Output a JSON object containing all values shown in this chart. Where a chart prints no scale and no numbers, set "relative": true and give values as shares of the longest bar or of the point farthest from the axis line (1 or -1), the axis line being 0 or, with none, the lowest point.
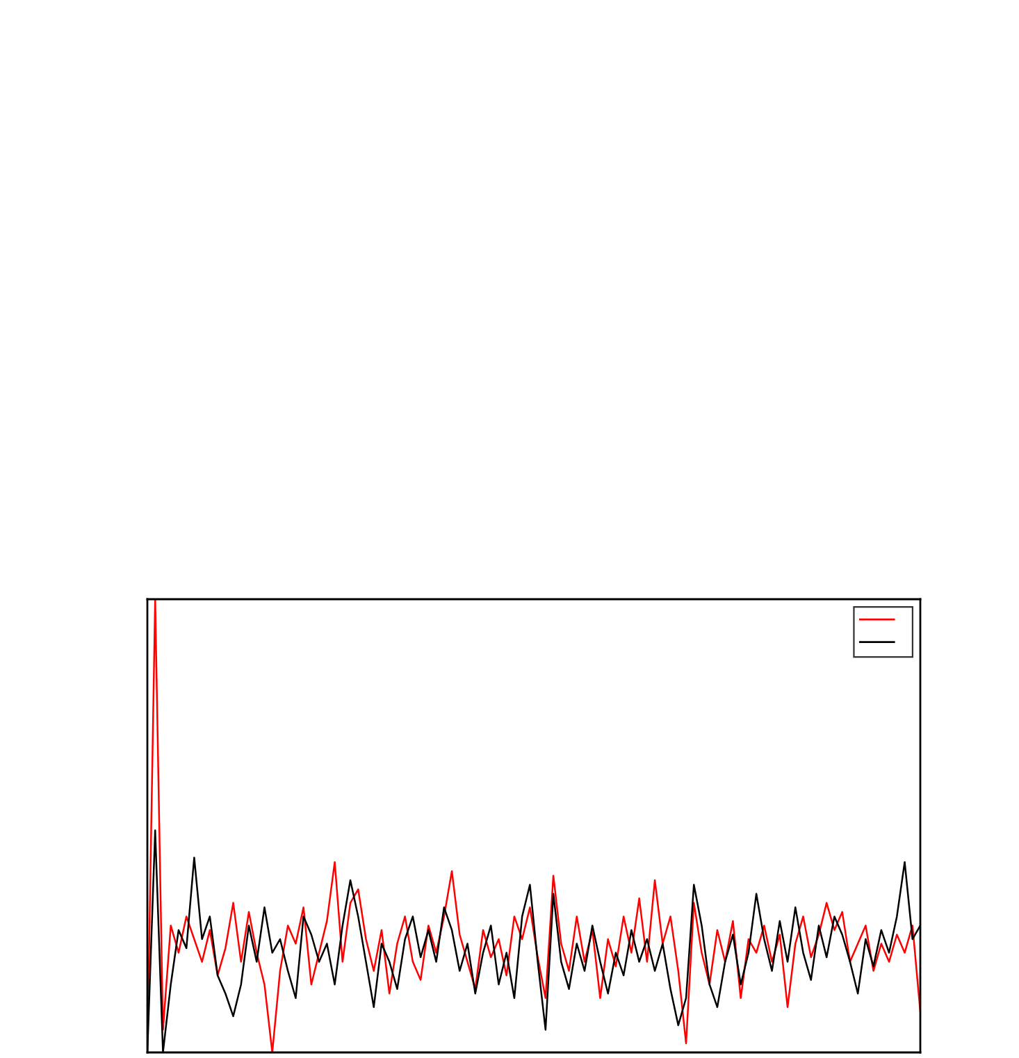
{
  "chart_data": {
    "type": "line",
    "relative": true,
    "categories": [
      null,
      null,
      null,
      null,
      null,
      null,
      null,
      null,
      null,
      null,
      null,
      null,
      null,
      null,
      null,
      null,
      null,
      null,
      null,
      null,
      null,
      null,
      null,
      null,
      null,
      null,
      null,
      null,
      null,
      null,
      null,
      null,
      null,
      null,
      null,
      null,
      null,
      null,
      null,
      null,
      null,
      null,
      null,
      null,
      null,
      null,
      null,
      null,
      null,
      null,
      null,
      null,
      null,
      null,
      null,
      null,
      null,
      null,
      null,
      null,
      null,
      null,
      null,
      null,
      null,
      null,
      null,
      null,
      null,
      null,
      null,
      null,
      null,
      null,
      null,
      null,
      null,
      null,
      null,
      null,
      null,
      null,
      null,
      null,
      null,
      null,
      null,
      null,
      null,
      null,
      null,
      null,
      null,
      null,
      null,
      null,
      null,
      null,
      null,
      null
    ],
    "series": [
      {
        "color": "#ff0000",
        "values": [
          0.0,
          1.0,
          0.05,
          0.28,
          0.22,
          0.3,
          0.25,
          0.2,
          0.27,
          0.17,
          0.23,
          0.33,
          0.2,
          0.31,
          0.22,
          0.15,
          0.0,
          0.18,
          0.28,
          0.24,
          0.32,
          0.15,
          0.22,
          0.29,
          0.42,
          0.2,
          0.33,
          0.36,
          0.25,
          0.18,
          0.27,
          0.13,
          0.24,
          0.3,
          0.2,
          0.16,
          0.28,
          0.22,
          0.3,
          0.4,
          0.26,
          0.2,
          0.14,
          0.27,
          0.21,
          0.25,
          0.17,
          0.3,
          0.25,
          0.32,
          0.21,
          0.12,
          0.39,
          0.24,
          0.18,
          0.3,
          0.2,
          0.27,
          0.12,
          0.25,
          0.19,
          0.3,
          0.22,
          0.34,
          0.2,
          0.38,
          0.24,
          0.3,
          0.18,
          0.02,
          0.33,
          0.22,
          0.15,
          0.27,
          0.2,
          0.29,
          0.12,
          0.25,
          0.22,
          0.28,
          0.2,
          0.26,
          0.1,
          0.24,
          0.3,
          0.21,
          0.26,
          0.33,
          0.27,
          0.31,
          0.2,
          0.24,
          0.28,
          0.18,
          0.24,
          0.2,
          0.26,
          0.22,
          0.28,
          0.09
        ]
      },
      {
        "color": "#000000",
        "values": [
          0.0,
          0.49,
          0.0,
          0.15,
          0.27,
          0.23,
          0.43,
          0.25,
          0.3,
          0.17,
          0.13,
          0.08,
          0.15,
          0.28,
          0.2,
          0.32,
          0.22,
          0.25,
          0.18,
          0.12,
          0.3,
          0.26,
          0.2,
          0.24,
          0.15,
          0.28,
          0.38,
          0.3,
          0.2,
          0.1,
          0.24,
          0.2,
          0.14,
          0.25,
          0.3,
          0.21,
          0.27,
          0.2,
          0.32,
          0.27,
          0.18,
          0.24,
          0.13,
          0.22,
          0.28,
          0.15,
          0.22,
          0.12,
          0.3,
          0.37,
          0.2,
          0.05,
          0.35,
          0.2,
          0.14,
          0.24,
          0.18,
          0.28,
          0.2,
          0.13,
          0.22,
          0.17,
          0.27,
          0.2,
          0.25,
          0.18,
          0.24,
          0.14,
          0.06,
          0.12,
          0.37,
          0.28,
          0.15,
          0.1,
          0.2,
          0.26,
          0.15,
          0.22,
          0.35,
          0.25,
          0.18,
          0.29,
          0.2,
          0.32,
          0.22,
          0.16,
          0.28,
          0.21,
          0.3,
          0.26,
          0.2,
          0.13,
          0.25,
          0.19,
          0.27,
          0.22,
          0.3,
          0.42,
          0.25,
          0.28
        ]
      }
    ]
  }
}
